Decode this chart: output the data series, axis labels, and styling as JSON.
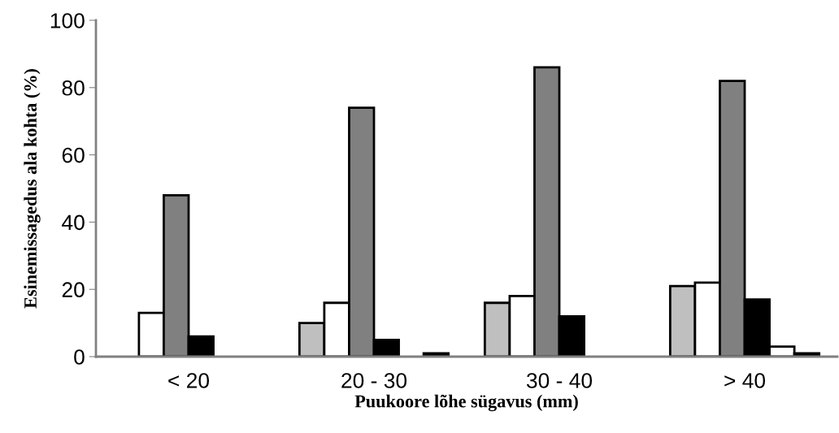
{
  "chart_data": {
    "type": "bar",
    "xlabel": "Puukoore lõhe sügavus (mm)",
    "ylabel": "Esinemissagedus ala kohta (%)",
    "categories": [
      "< 20",
      "20 - 30",
      "30 - 40",
      "> 40"
    ],
    "series": [
      {
        "color": "#bfbfbf",
        "values": [
          null,
          10,
          16,
          21
        ]
      },
      {
        "color": "#ffffff",
        "values": [
          13,
          16,
          18,
          22
        ]
      },
      {
        "color": "#808080",
        "values": [
          48,
          74,
          86,
          82
        ]
      },
      {
        "color": "#000000",
        "values": [
          6,
          5,
          12,
          17
        ]
      },
      {
        "color": "#ffffff",
        "values": [
          null,
          null,
          null,
          3
        ]
      },
      {
        "color": "#000000",
        "values": [
          null,
          1,
          null,
          1
        ]
      }
    ],
    "ylim": [
      0,
      100
    ],
    "yticks": [
      0,
      20,
      40,
      60,
      80,
      100
    ],
    "grid": false,
    "legend": false
  }
}
